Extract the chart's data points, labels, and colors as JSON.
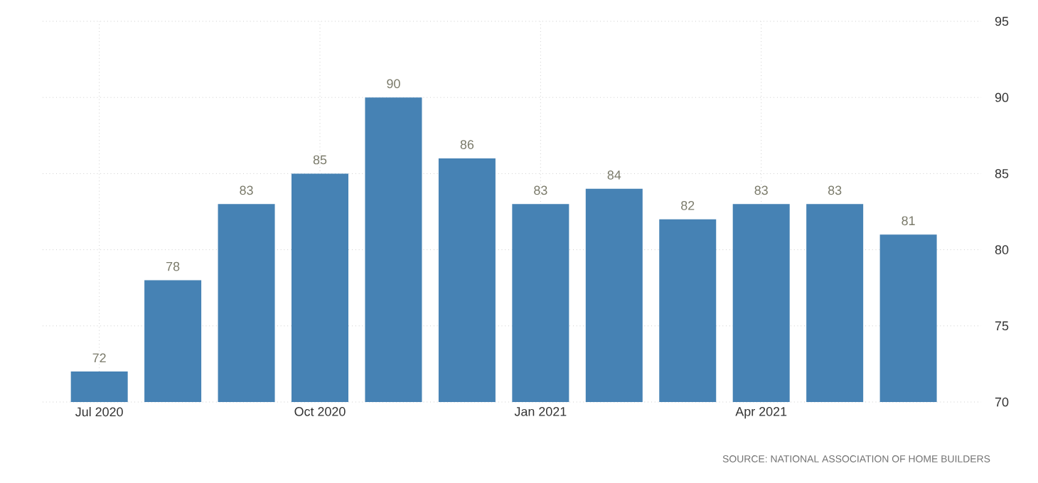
{
  "chart_data": {
    "type": "bar",
    "categories": [
      "Jul 2020",
      null,
      null,
      "Oct 2020",
      null,
      null,
      "Jan 2021",
      null,
      null,
      "Apr 2021",
      null,
      null
    ],
    "values": [
      72,
      78,
      83,
      85,
      90,
      86,
      83,
      84,
      82,
      83,
      83,
      81
    ],
    "color": "#4682b4",
    "ylim": [
      70,
      95
    ],
    "yticks": [
      70,
      75,
      80,
      85,
      90,
      95
    ],
    "grid": true,
    "data_labels": true,
    "annotations": [
      "SOURCE: NATIONAL ASSOCIATION OF HOME BUILDERS"
    ]
  }
}
